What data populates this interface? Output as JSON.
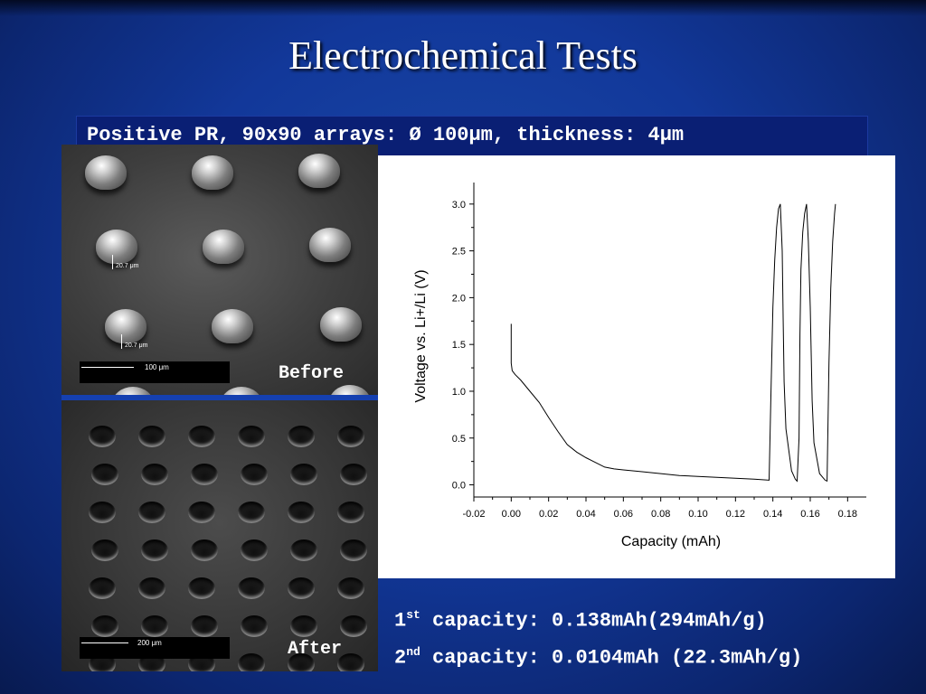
{
  "slide": {
    "title": "Electrochemical Tests",
    "subtitle": "Positive PR, 90x90 arrays: Ø 100μm, thickness: 4μm"
  },
  "images": {
    "before": {
      "label": "Before",
      "scale_text": "100 μm",
      "measure_1": "20.7 μm",
      "measure_2": "20.7 μm"
    },
    "after": {
      "label": "After",
      "scale_text": "200 μm"
    }
  },
  "results": [
    {
      "ordinal": "1",
      "suffix": "st",
      "text": "capacity: 0.138mAh(294mAh/g)"
    },
    {
      "ordinal": "2",
      "suffix": "nd",
      "text": "capacity: 0.0104mAh (22.3mAh/g)"
    }
  ],
  "chart_data": {
    "type": "line",
    "xlabel": "Capacity (mAh)",
    "ylabel": "Voltage vs. Li+/Li (V)",
    "xlim": [
      -0.02,
      0.19
    ],
    "ylim": [
      -0.13,
      3.23
    ],
    "xticks": [
      "-0.02",
      "0.00",
      "0.02",
      "0.04",
      "0.06",
      "0.08",
      "0.10",
      "0.12",
      "0.14",
      "0.16",
      "0.18"
    ],
    "yticks": [
      "0.0",
      "0.5",
      "1.0",
      "1.5",
      "2.0",
      "2.5",
      "3.0"
    ],
    "series": [
      {
        "color": "#000000",
        "x": [
          0.0,
          0.0,
          0.0005,
          0.002,
          0.005,
          0.01,
          0.015,
          0.02,
          0.025,
          0.03,
          0.035,
          0.04,
          0.045,
          0.05,
          0.055,
          0.06,
          0.065,
          0.07,
          0.08,
          0.09,
          0.1,
          0.11,
          0.12,
          0.13,
          0.138,
          0.138,
          0.139,
          0.14,
          0.141,
          0.142,
          0.143,
          0.144,
          0.145,
          0.1455,
          0.146,
          0.147,
          0.15,
          0.152,
          0.153,
          0.154,
          0.1545,
          0.155,
          0.156,
          0.157,
          0.158,
          0.159,
          0.16,
          0.16,
          0.161,
          0.162,
          0.165,
          0.168,
          0.169,
          0.169,
          0.17,
          0.171,
          0.172,
          0.173,
          0.1735
        ],
        "y": [
          1.72,
          1.3,
          1.22,
          1.18,
          1.12,
          1.0,
          0.88,
          0.72,
          0.57,
          0.43,
          0.35,
          0.29,
          0.24,
          0.19,
          0.17,
          0.16,
          0.15,
          0.14,
          0.12,
          0.1,
          0.09,
          0.08,
          0.07,
          0.06,
          0.05,
          0.05,
          1.0,
          1.9,
          2.4,
          2.75,
          2.95,
          3.0,
          2.5,
          1.8,
          1.1,
          0.6,
          0.15,
          0.06,
          0.04,
          0.5,
          1.6,
          2.3,
          2.7,
          2.9,
          3.0,
          2.6,
          1.9,
          1.9,
          0.9,
          0.45,
          0.12,
          0.05,
          0.04,
          0.04,
          1.3,
          2.1,
          2.6,
          2.9,
          3.0
        ]
      }
    ]
  }
}
